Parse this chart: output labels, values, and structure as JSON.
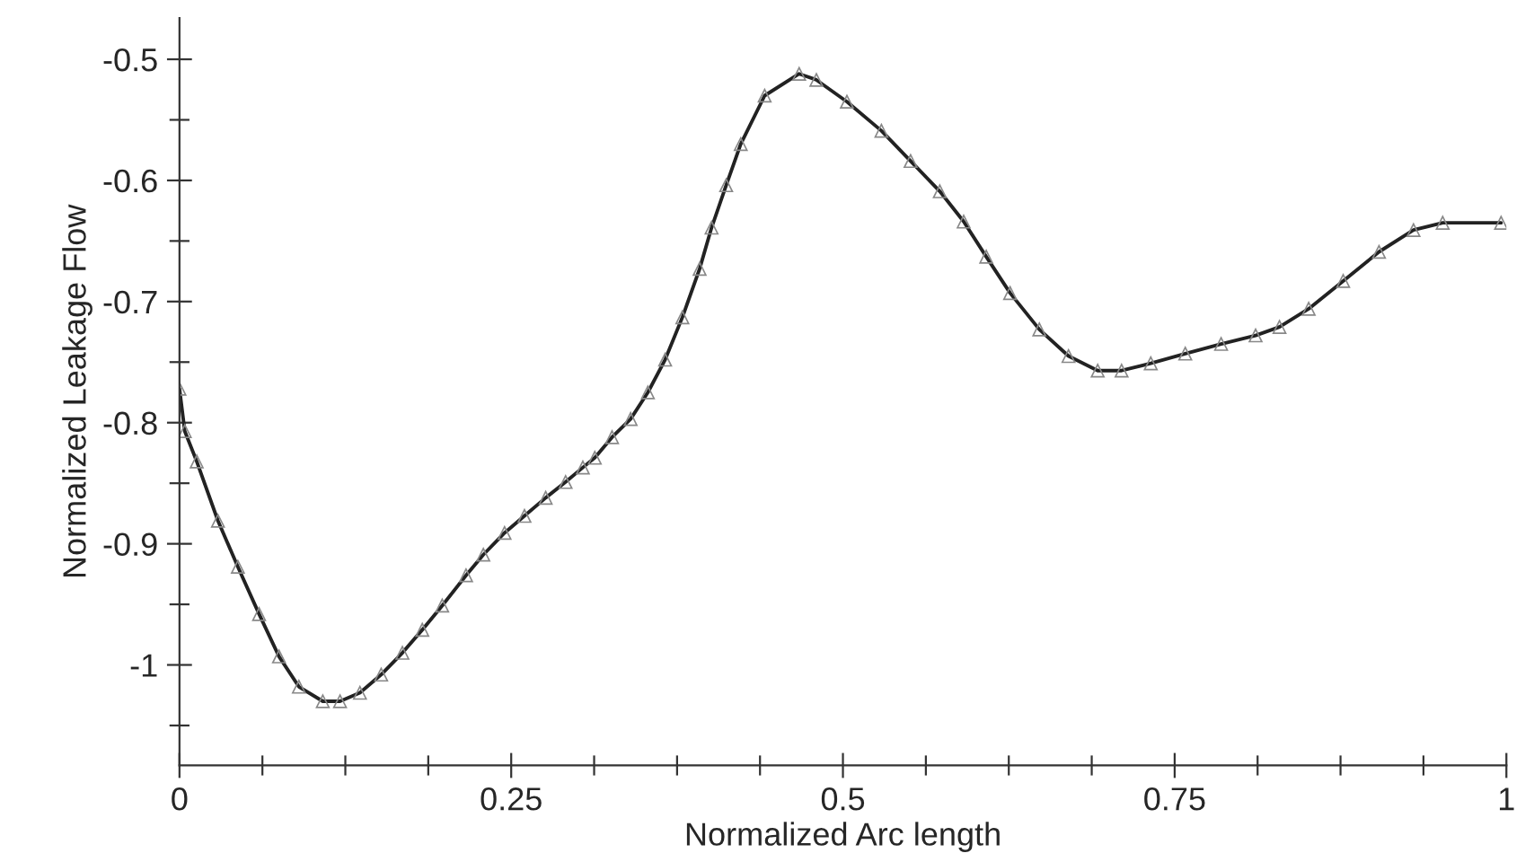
{
  "chart_data": {
    "type": "line",
    "xlabel": "Normalized Arc length",
    "ylabel": "Normalized Leakage Flow",
    "xlim": [
      0,
      1
    ],
    "xticks": [
      0,
      0.25,
      0.5,
      0.75,
      1
    ],
    "ylim": [
      -1.083,
      -0.466
    ],
    "yticks": [
      -1,
      -0.9,
      -0.8,
      -0.7,
      -0.6,
      -0.5
    ],
    "grid": false,
    "marker": "triangle",
    "line_style": "solid",
    "series": [
      {
        "color": "#222222",
        "x": [
          0,
          0.004,
          0.013,
          0.029,
          0.044,
          0.06,
          0.075,
          0.09,
          0.108,
          0.121,
          0.136,
          0.152,
          0.168,
          0.183,
          0.198,
          0.216,
          0.229,
          0.245,
          0.26,
          0.276,
          0.291,
          0.304,
          0.313,
          0.326,
          0.34,
          0.353,
          0.366,
          0.379,
          0.392,
          0.401,
          0.412,
          0.423,
          0.441,
          0.467,
          0.48,
          0.503,
          0.529,
          0.551,
          0.573,
          0.591,
          0.608,
          0.626,
          0.648,
          0.67,
          0.692,
          0.71,
          0.732,
          0.758,
          0.785,
          0.811,
          0.829,
          0.851,
          0.877,
          0.904,
          0.93,
          0.952,
          0.996
        ],
        "values": [
          -0.772,
          -0.807,
          -0.832,
          -0.881,
          -0.919,
          -0.958,
          -0.993,
          -1.018,
          -1.03,
          -1.03,
          -1.023,
          -1.008,
          -0.99,
          -0.971,
          -0.951,
          -0.926,
          -0.909,
          -0.891,
          -0.877,
          -0.862,
          -0.849,
          -0.837,
          -0.829,
          -0.812,
          -0.797,
          -0.775,
          -0.748,
          -0.713,
          -0.673,
          -0.639,
          -0.604,
          -0.57,
          -0.53,
          -0.512,
          -0.517,
          -0.535,
          -0.559,
          -0.584,
          -0.609,
          -0.634,
          -0.663,
          -0.693,
          -0.723,
          -0.745,
          -0.757,
          -0.757,
          -0.751,
          -0.743,
          -0.735,
          -0.728,
          -0.721,
          -0.706,
          -0.683,
          -0.659,
          -0.641,
          -0.635,
          -0.635
        ]
      }
    ]
  }
}
